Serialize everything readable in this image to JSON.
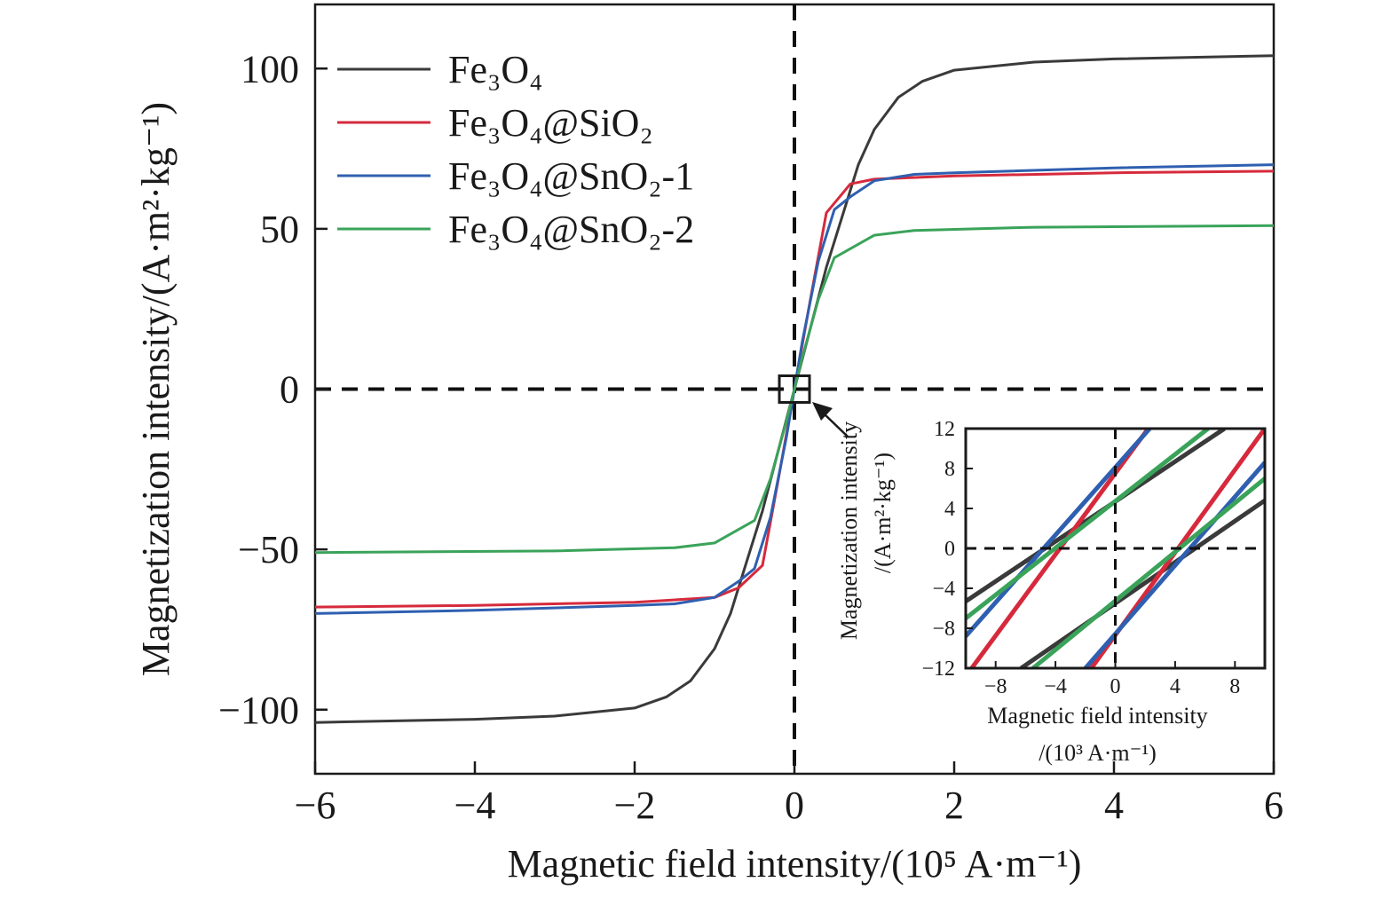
{
  "chart_data": [
    {
      "type": "line",
      "xlabel": "Magnetic field intensity/(10⁵ A·m⁻¹)",
      "ylabel": "Magnetization intensity/(A·m²·kg⁻¹)",
      "xlim": [
        -6,
        6
      ],
      "ylim": [
        -120,
        120
      ],
      "xticks": [
        -6,
        -4,
        -2,
        0,
        2,
        4,
        6
      ],
      "xtick_labels": [
        "−6",
        "−4",
        "−2",
        "0",
        "2",
        "4",
        "6"
      ],
      "yticks": [
        -100,
        -50,
        0,
        50,
        100
      ],
      "ytick_labels": [
        "−100",
        "−50",
        "0",
        "50",
        "100"
      ],
      "grid": false,
      "legend_position": "top-left",
      "reference_lines": [
        "x = 0 (dashed)",
        "y = 0 (dashed)"
      ],
      "series": [
        {
          "name": "Fe₃O₄",
          "color": "#3a3a3a",
          "x": [
            -6,
            -4,
            -3,
            -2,
            -1.6,
            -1.3,
            -1.0,
            -0.8,
            -0.6,
            -0.4,
            -0.2,
            0,
            0.2,
            0.4,
            0.6,
            0.8,
            1.0,
            1.3,
            1.6,
            2.0,
            3.0,
            4.0,
            6.0
          ],
          "y": [
            -104,
            -103,
            -102,
            -99.5,
            -96,
            -91,
            -81,
            -70,
            -54,
            -38,
            -19,
            0,
            19,
            38,
            54,
            70,
            81,
            91,
            96,
            99.5,
            102,
            103,
            104
          ]
        },
        {
          "name": "Fe₃O₄@SiO₂",
          "color": "#d62a3c",
          "x": [
            -6,
            -4,
            -2,
            -1.0,
            -0.7,
            -0.4,
            -0.2,
            0,
            0.2,
            0.4,
            0.7,
            1.0,
            2,
            4,
            6
          ],
          "y": [
            -68,
            -67.5,
            -66.5,
            -65,
            -62,
            -55,
            -28,
            0,
            28,
            55,
            64,
            65.5,
            66.5,
            67.5,
            68
          ]
        },
        {
          "name": "Fe₃O₄@SnO₂-1",
          "color": "#2f5fb0",
          "x": [
            -6,
            -4,
            -2,
            -1.5,
            -1.0,
            -0.7,
            -0.5,
            -0.3,
            -0.1,
            0,
            0.1,
            0.3,
            0.5,
            0.7,
            1.0,
            1.5,
            2,
            4,
            6
          ],
          "y": [
            -70,
            -69,
            -67.5,
            -67,
            -65,
            -60,
            -56,
            -40,
            -15,
            0,
            15,
            40,
            56,
            60,
            65,
            67,
            67.5,
            69,
            70
          ]
        },
        {
          "name": "Fe₃O₄@SnO₂-2",
          "color": "#3aa35a",
          "x": [
            -6,
            -3,
            -1.5,
            -1.0,
            -0.5,
            -0.3,
            -0.1,
            0,
            0.1,
            0.3,
            0.5,
            1.0,
            1.5,
            3,
            6
          ],
          "y": [
            -51,
            -50.5,
            -49.5,
            -48,
            -41,
            -28,
            -10,
            0,
            10,
            28,
            41,
            48,
            49.5,
            50.5,
            51
          ]
        }
      ]
    },
    {
      "type": "line",
      "xlabel": "Magnetic field intensity",
      "xlabel_units": "/(10³ A·m⁻¹)",
      "ylabel": "Magnetization intensity",
      "ylabel_units": "/(A·m²·kg⁻¹)",
      "xlim": [
        -10,
        10
      ],
      "ylim": [
        -12,
        12
      ],
      "xticks": [
        -8,
        -4,
        0,
        4,
        8
      ],
      "xtick_labels": [
        "−8",
        "−4",
        "0",
        "4",
        "8"
      ],
      "yticks": [
        -12,
        -8,
        -4,
        0,
        4,
        8,
        12
      ],
      "ytick_labels": [
        "−12",
        "−8",
        "−4",
        "0",
        "4",
        "8",
        "12"
      ],
      "grid": false,
      "position": "bottom-right inset",
      "reference_lines": [
        "x = 0 (dashed)",
        "y = 0 (dashed)"
      ],
      "series": [
        {
          "name": "Fe₃O₄",
          "color": "#3a3a3a",
          "segments": [
            {
              "x": [
                -10,
                7.3
              ],
              "y": [
                -5.3,
                12
              ]
            },
            {
              "x": [
                -6.3,
                10
              ],
              "y": [
                -12,
                4.8
              ]
            }
          ]
        },
        {
          "name": "Fe₃O₄@SiO₂",
          "color": "#d62a3c",
          "segments": [
            {
              "x": [
                -9.6,
                2.2
              ],
              "y": [
                -12,
                12
              ]
            },
            {
              "x": [
                -1.6,
                10
              ],
              "y": [
                -12,
                12
              ]
            }
          ]
        },
        {
          "name": "Fe₃O₄@SnO₂-1",
          "color": "#2f5fb0",
          "segments": [
            {
              "x": [
                -10,
                2.3
              ],
              "y": [
                -8.8,
                12
              ]
            },
            {
              "x": [
                -2.0,
                10
              ],
              "y": [
                -12,
                8.6
              ]
            }
          ]
        },
        {
          "name": "Fe₃O₄@SnO₂-2",
          "color": "#3aa35a",
          "segments": [
            {
              "x": [
                -10,
                6.2
              ],
              "y": [
                -7.0,
                12
              ]
            },
            {
              "x": [
                -5.5,
                10
              ],
              "y": [
                -12,
                7.0
              ]
            }
          ]
        }
      ]
    }
  ]
}
